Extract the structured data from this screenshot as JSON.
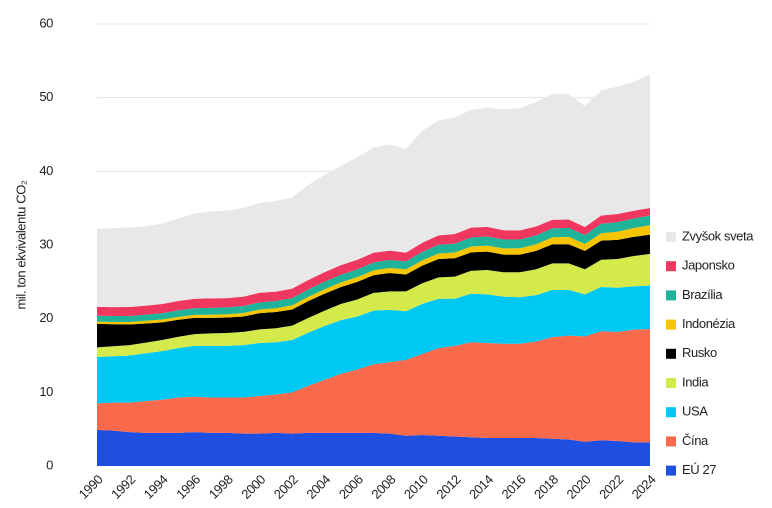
{
  "chart_data": {
    "type": "stacked_area",
    "y_label": "mil. ton ekvivalentu CO₂",
    "x": [
      1990,
      1991,
      1992,
      1993,
      1994,
      1995,
      1996,
      1997,
      1998,
      1999,
      2000,
      2001,
      2002,
      2003,
      2004,
      2005,
      2006,
      2007,
      2008,
      2009,
      2010,
      2011,
      2012,
      2013,
      2014,
      2015,
      2016,
      2017,
      2018,
      2019,
      2020,
      2021,
      2022,
      2023,
      2024
    ],
    "xlim": [
      1990,
      2024
    ],
    "xticks": [
      1990,
      1992,
      1994,
      1996,
      1998,
      2000,
      2002,
      2004,
      2006,
      2008,
      2010,
      2012,
      2014,
      2016,
      2018,
      2020,
      2022,
      2024
    ],
    "ylim": [
      0,
      60
    ],
    "yticks": [
      0,
      10,
      20,
      30,
      40,
      50,
      60
    ],
    "grid": true,
    "legend": "right",
    "series": [
      {
        "name": "EÚ 27",
        "color": "#1f4fe0",
        "values": [
          4.9,
          4.8,
          4.6,
          4.5,
          4.5,
          4.5,
          4.6,
          4.5,
          4.5,
          4.4,
          4.4,
          4.5,
          4.4,
          4.5,
          4.5,
          4.5,
          4.5,
          4.5,
          4.4,
          4.1,
          4.2,
          4.1,
          4.0,
          3.9,
          3.8,
          3.8,
          3.8,
          3.8,
          3.7,
          3.6,
          3.3,
          3.5,
          3.4,
          3.2,
          3.2
        ]
      },
      {
        "name": "Čína",
        "color": "#f96a4c",
        "values": [
          3.6,
          3.8,
          4.0,
          4.3,
          4.5,
          4.8,
          4.8,
          4.8,
          4.8,
          4.9,
          5.1,
          5.2,
          5.6,
          6.4,
          7.2,
          8.0,
          8.6,
          9.3,
          9.7,
          10.3,
          11.0,
          11.9,
          12.3,
          12.9,
          12.9,
          12.8,
          12.8,
          13.1,
          13.8,
          14.1,
          14.3,
          14.8,
          14.8,
          15.3,
          15.4
        ]
      },
      {
        "name": "USA",
        "color": "#00c8f5",
        "values": [
          6.3,
          6.3,
          6.4,
          6.5,
          6.6,
          6.7,
          6.9,
          7.0,
          7.0,
          7.1,
          7.2,
          7.1,
          7.1,
          7.2,
          7.3,
          7.3,
          7.2,
          7.3,
          7.1,
          6.6,
          6.8,
          6.7,
          6.4,
          6.6,
          6.6,
          6.4,
          6.3,
          6.3,
          6.4,
          6.2,
          5.7,
          6.0,
          6.0,
          5.9,
          5.9
        ]
      },
      {
        "name": "India",
        "color": "#d4ea4a",
        "values": [
          1.3,
          1.35,
          1.4,
          1.45,
          1.5,
          1.55,
          1.6,
          1.7,
          1.75,
          1.8,
          1.85,
          1.9,
          1.95,
          2.0,
          2.1,
          2.2,
          2.3,
          2.4,
          2.5,
          2.7,
          2.8,
          2.9,
          3.0,
          3.1,
          3.3,
          3.3,
          3.4,
          3.5,
          3.6,
          3.6,
          3.4,
          3.7,
          3.9,
          4.1,
          4.3
        ]
      },
      {
        "name": "Rusko",
        "color": "#000000",
        "values": [
          3.2,
          3.0,
          2.8,
          2.6,
          2.4,
          2.3,
          2.2,
          2.1,
          2.1,
          2.1,
          2.2,
          2.2,
          2.2,
          2.3,
          2.3,
          2.3,
          2.4,
          2.4,
          2.5,
          2.3,
          2.4,
          2.5,
          2.5,
          2.5,
          2.5,
          2.4,
          2.4,
          2.5,
          2.6,
          2.6,
          2.5,
          2.6,
          2.6,
          2.6,
          2.6
        ]
      },
      {
        "name": "Indonézia",
        "color": "#f7c400",
        "values": [
          0.3,
          0.32,
          0.34,
          0.36,
          0.38,
          0.4,
          0.42,
          0.45,
          0.45,
          0.47,
          0.5,
          0.52,
          0.55,
          0.57,
          0.6,
          0.62,
          0.64,
          0.66,
          0.68,
          0.7,
          0.72,
          0.75,
          0.78,
          0.8,
          0.82,
          0.84,
          0.86,
          0.9,
          0.95,
          1.0,
          0.95,
          1.0,
          1.1,
          1.2,
          1.3
        ]
      },
      {
        "name": "Brazília",
        "color": "#1fb39a",
        "values": [
          0.8,
          0.8,
          0.82,
          0.84,
          0.86,
          0.88,
          0.9,
          0.92,
          0.94,
          0.95,
          0.96,
          0.97,
          0.98,
          1.0,
          1.02,
          1.04,
          1.05,
          1.07,
          1.1,
          1.08,
          1.15,
          1.18,
          1.2,
          1.22,
          1.24,
          1.2,
          1.18,
          1.2,
          1.2,
          1.22,
          1.2,
          1.28,
          1.3,
          1.3,
          1.3
        ]
      },
      {
        "name": "Japonsko",
        "color": "#f0375f",
        "values": [
          1.2,
          1.2,
          1.22,
          1.22,
          1.25,
          1.27,
          1.28,
          1.28,
          1.25,
          1.28,
          1.3,
          1.28,
          1.3,
          1.3,
          1.3,
          1.3,
          1.3,
          1.32,
          1.25,
          1.18,
          1.24,
          1.28,
          1.32,
          1.34,
          1.3,
          1.27,
          1.24,
          1.22,
          1.18,
          1.15,
          1.1,
          1.12,
          1.1,
          1.05,
          1.02
        ]
      },
      {
        "name": "Zvyšok sveta",
        "color": "#e8e8e8",
        "values": [
          10.6,
          10.7,
          10.8,
          10.8,
          10.9,
          11.2,
          11.6,
          11.8,
          11.9,
          12.0,
          12.2,
          12.3,
          12.4,
          12.9,
          13.2,
          13.5,
          13.9,
          14.3,
          14.4,
          14.1,
          15.2,
          15.6,
          15.8,
          16.0,
          16.2,
          16.4,
          16.6,
          16.9,
          17.1,
          17.0,
          16.4,
          17.0,
          17.3,
          17.5,
          18.1
        ]
      }
    ]
  }
}
